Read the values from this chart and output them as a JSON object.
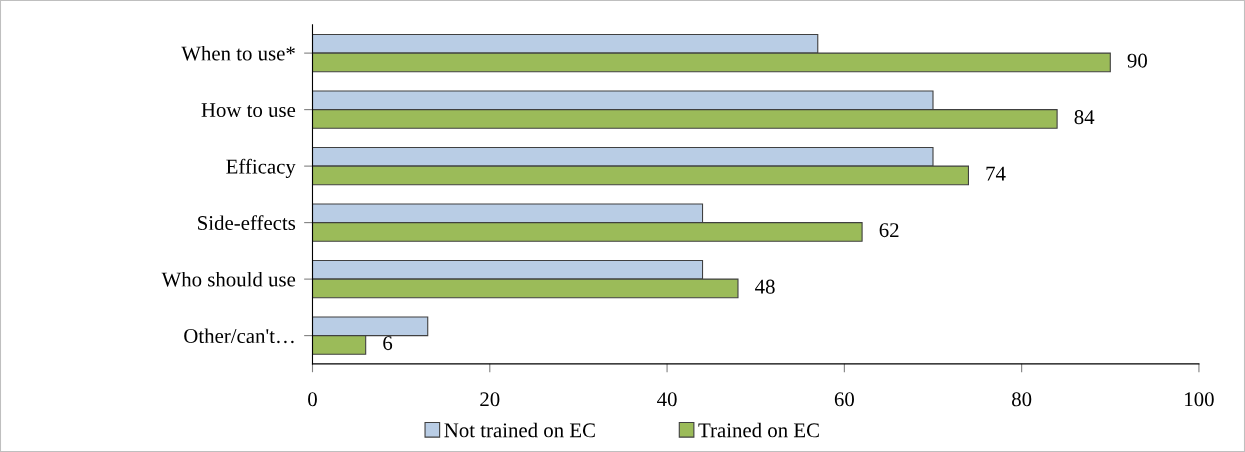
{
  "chart_data": {
    "type": "bar",
    "orientation": "horizontal",
    "categories": [
      "When to use*",
      "How to use",
      "Efficacy",
      "Side-effects",
      "Who should use",
      "Other/can't…"
    ],
    "series": [
      {
        "name": "Not trained on EC",
        "color": "#b9cde5",
        "values": [
          57,
          70,
          70,
          44,
          44,
          13
        ]
      },
      {
        "name": "Trained on EC",
        "color": "#9bbb59",
        "values": [
          90,
          84,
          74,
          62,
          48,
          6
        ],
        "value_labels": [
          "90",
          "84",
          "74",
          "62",
          "48",
          "6"
        ]
      }
    ],
    "xlim": [
      0,
      100
    ],
    "xticks": [
      0,
      20,
      40,
      60,
      80,
      100
    ],
    "grid": false,
    "legend": "bottom"
  }
}
